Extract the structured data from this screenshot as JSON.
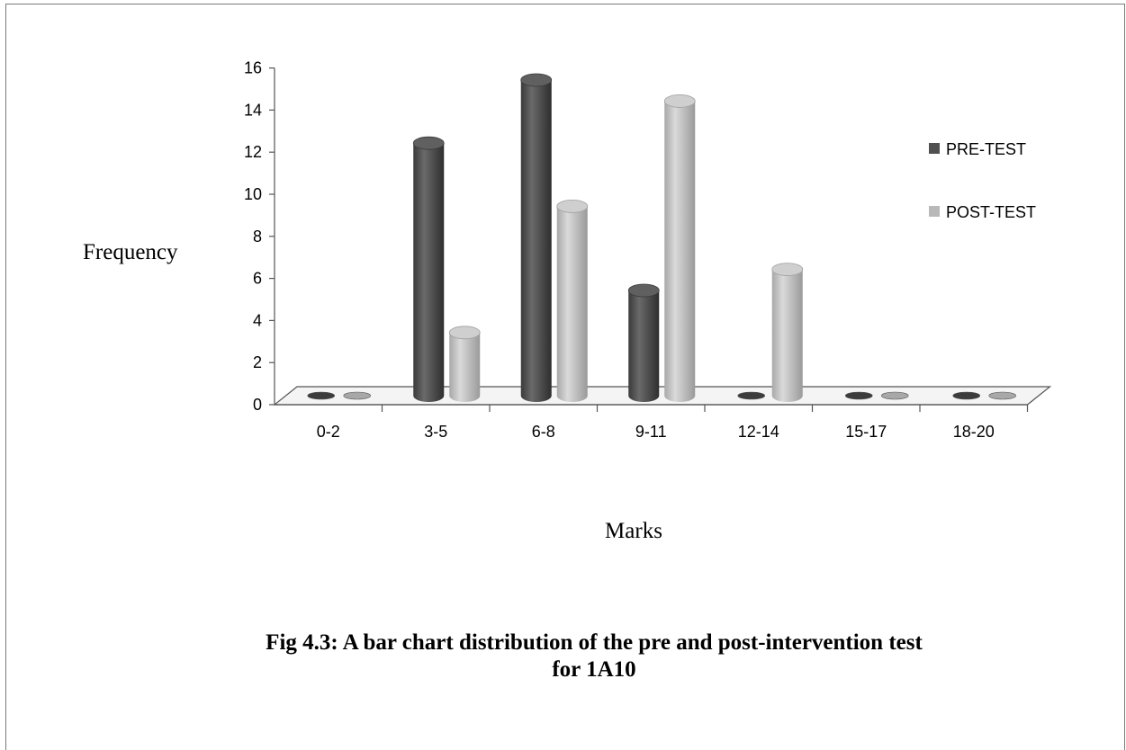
{
  "chart_data": {
    "type": "bar",
    "title": "",
    "xlabel": "Marks",
    "ylabel": "Frequency",
    "ylim": [
      0,
      16
    ],
    "yticks": [
      "0",
      "2",
      "4",
      "6",
      "8",
      "10",
      "12",
      "14",
      "16"
    ],
    "categories": [
      "0-2",
      "3-5",
      "6-8",
      "9-11",
      "12-14",
      "15-17",
      "18-20"
    ],
    "series": [
      {
        "name": "PRE-TEST",
        "values": [
          0,
          12,
          15,
          5,
          0,
          0,
          0
        ],
        "color": "#505050"
      },
      {
        "name": "POST-TEST",
        "values": [
          0,
          3,
          9,
          14,
          6,
          0,
          0
        ],
        "color": "#b8b8b8"
      }
    ],
    "legend": "right",
    "grid": false,
    "style": "3d-cylinder"
  },
  "caption": {
    "line1": "Fig 4.3: A bar chart distribution of the pre and post-intervention test",
    "line2": "for 1A10"
  }
}
